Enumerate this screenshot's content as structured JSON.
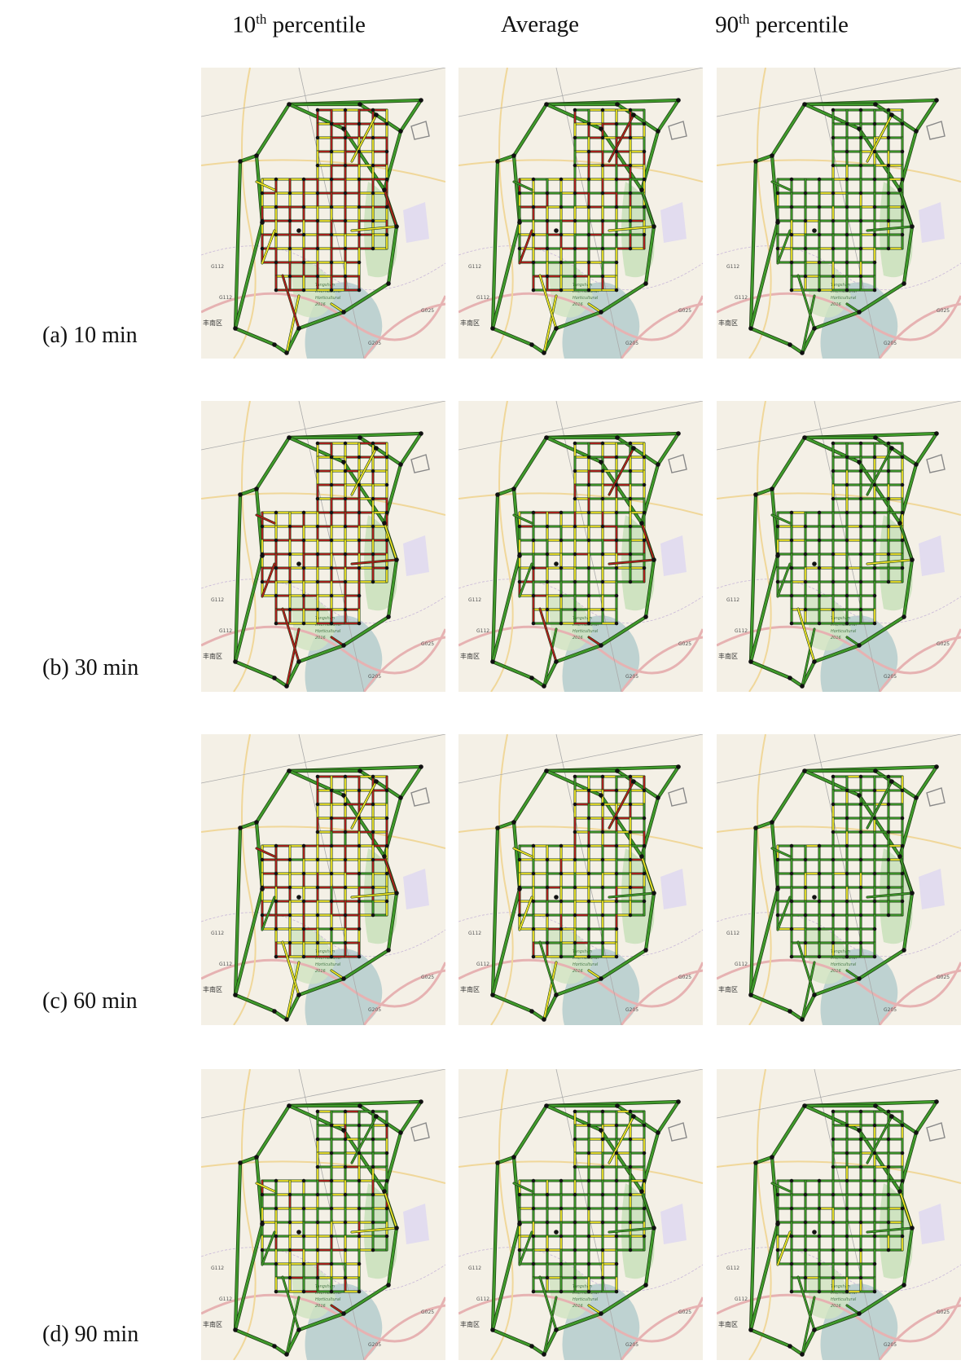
{
  "columns": [
    {
      "main": "10",
      "sup": "th",
      "rest": " percentile"
    },
    {
      "main": "Average",
      "sup": "",
      "rest": ""
    },
    {
      "main": "90",
      "sup": "th",
      "rest": " percentile"
    }
  ],
  "rows": [
    {
      "label": "(a) 10 min",
      "levels": [
        0.15,
        0.45,
        0.8
      ]
    },
    {
      "label": "(b) 30 min",
      "levels": [
        0.2,
        0.5,
        0.85
      ]
    },
    {
      "label": "(c) 60 min",
      "levels": [
        0.3,
        0.5,
        0.95
      ]
    },
    {
      "label": "(d) 90 min",
      "levels": [
        0.55,
        0.8,
        0.97
      ]
    }
  ],
  "map_labels": {
    "road_g112": "G112",
    "road_g205": "G205",
    "road_g025": "G025",
    "district": "丰南区",
    "park_line1": "Tangshan",
    "park_line2": "International",
    "park_line3": "Horticultural",
    "park_line4": "2016"
  },
  "colors": {
    "red": "#b51d1d",
    "yellow": "#f2e629",
    "green": "#3f9a2b",
    "map_bg": "#f4f0e6",
    "park": "#cfe3c1",
    "water": "#a7c4c8"
  }
}
